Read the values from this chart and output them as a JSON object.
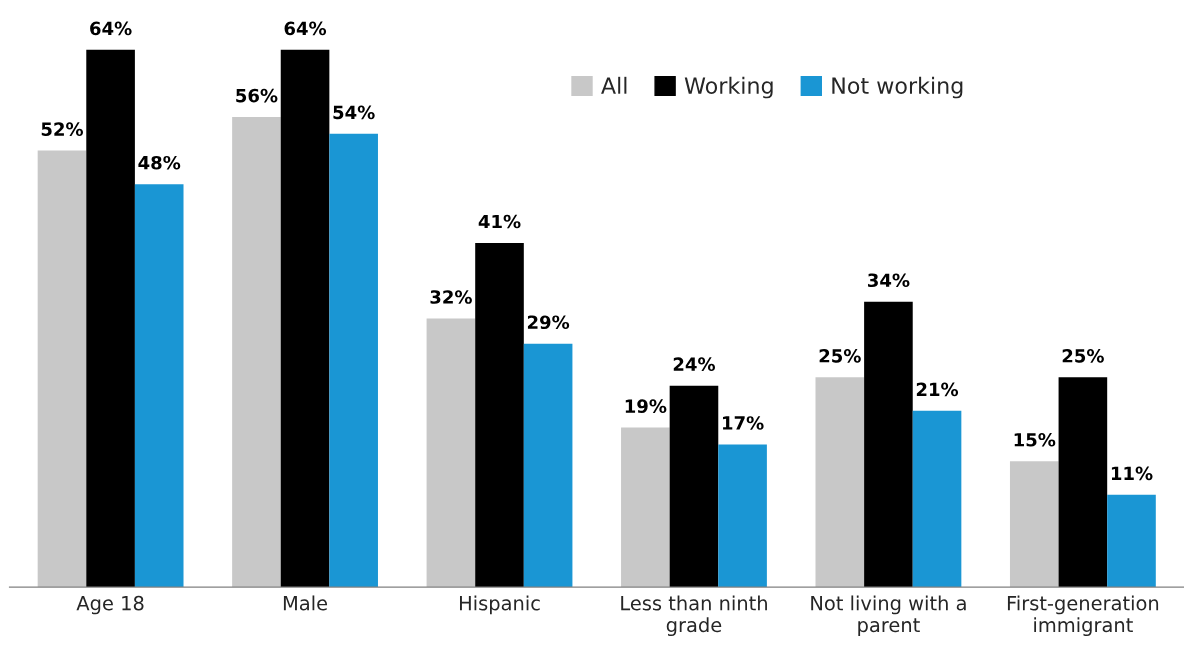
{
  "chart_data": {
    "type": "bar",
    "categories": [
      "Age 18",
      "Male",
      "Hispanic",
      "Less than ninth\ngrade",
      "Not living with a\nparent",
      "First-generation\nimmigrant"
    ],
    "series": [
      {
        "name": "All",
        "color": "#c8c8c8",
        "values": [
          52,
          56,
          32,
          19,
          25,
          15
        ],
        "value_labels": [
          "52%",
          "56%",
          "32%",
          "19%",
          "25%",
          "15%"
        ]
      },
      {
        "name": "Working",
        "color": "#000000",
        "values": [
          64,
          64,
          41,
          24,
          34,
          25
        ],
        "value_labels": [
          "64%",
          "64%",
          "41%",
          "24%",
          "34%",
          "25%"
        ]
      },
      {
        "name": "Not working",
        "color": "#1a96d4",
        "values": [
          48,
          54,
          29,
          17,
          21,
          11
        ],
        "value_labels": [
          "48%",
          "54%",
          "29%",
          "17%",
          "21%",
          "11%"
        ]
      }
    ],
    "legend": "top right",
    "grid": false
  }
}
